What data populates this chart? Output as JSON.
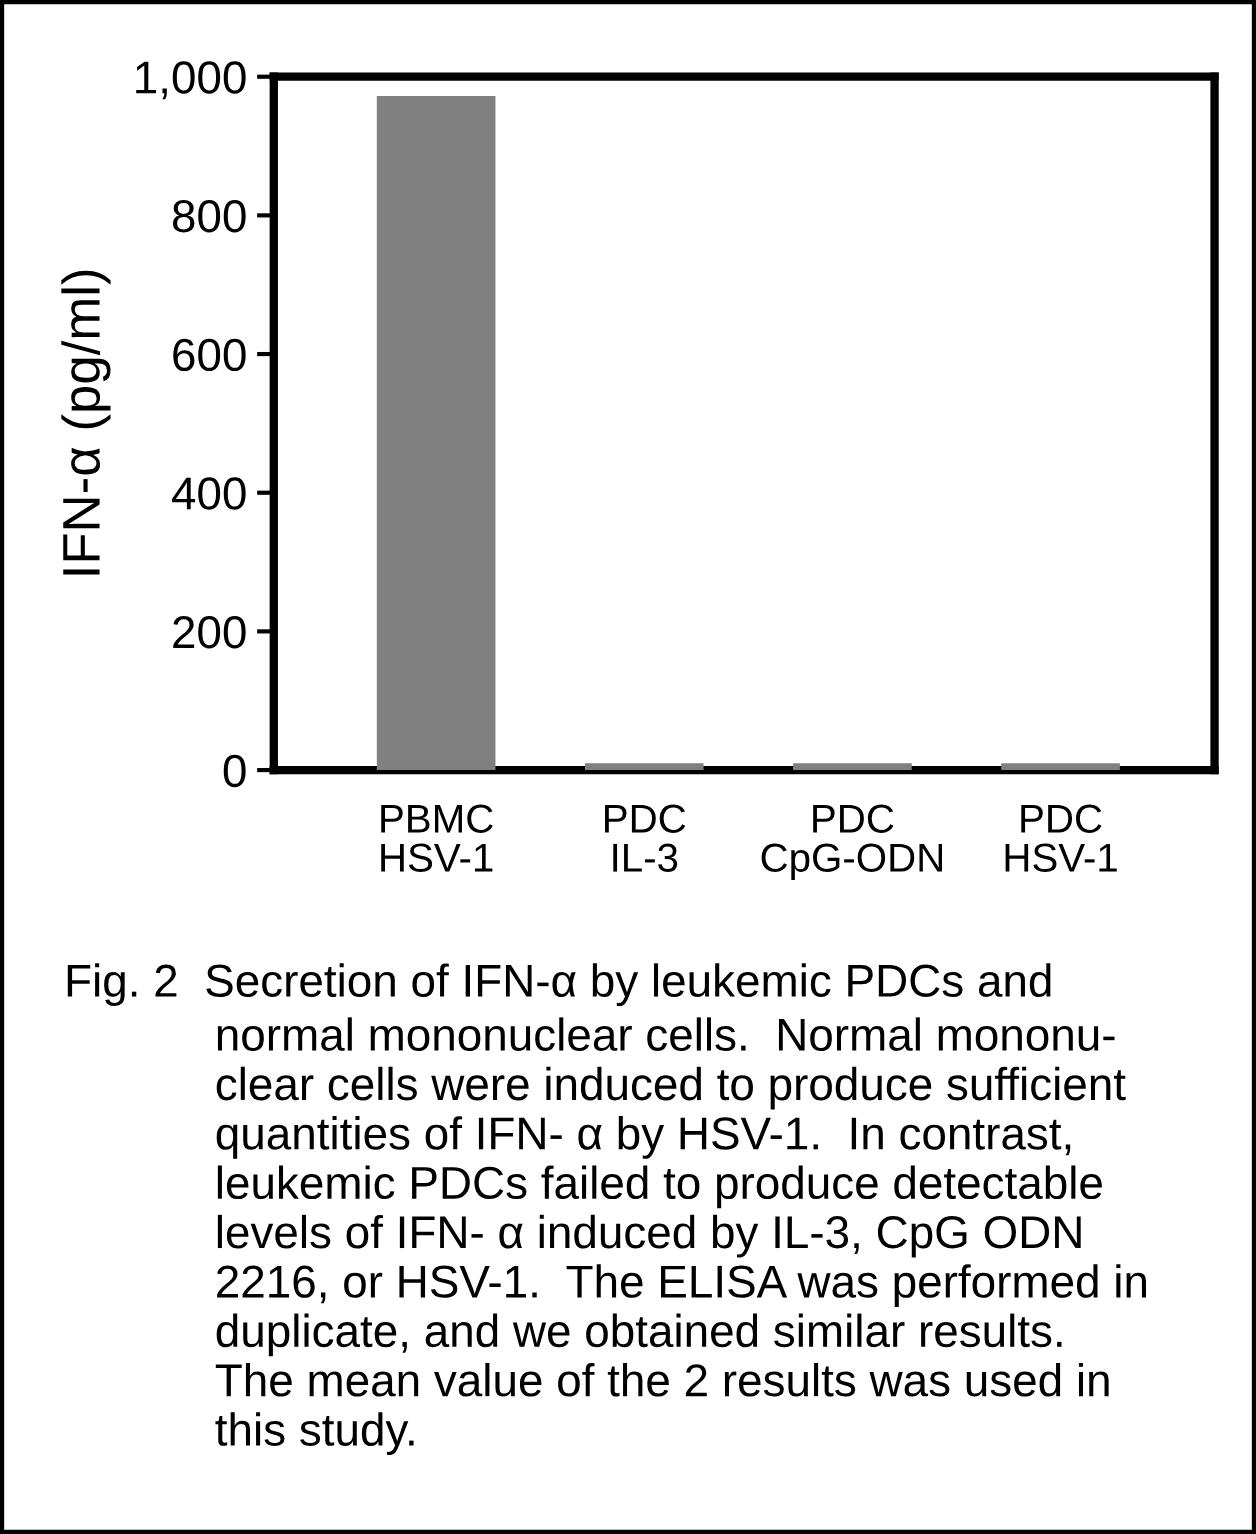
{
  "chart_data": {
    "type": "bar",
    "ylabel": "IFN-α (pg/ml)",
    "categories": [
      "PBMC\nHSV-1",
      "PDC\nIL-3",
      "PDC\nCpG-ODN",
      "PDC\nHSV-1"
    ],
    "values": [
      972,
      10,
      10,
      10
    ],
    "color": "#808080",
    "ylim": [
      0,
      1000
    ],
    "yticks": [
      0,
      200,
      400,
      600,
      800,
      {
        "value": 1000,
        "label": "1,000"
      }
    ],
    "grid": false,
    "annotations": [
      "Fig. 2  Secretion of IFN-α by leukemic PDCs and\nnormal mononuclear cells.  Normal mononu-\nclear cells were induced to produce sufficient\nquantities of IFN- α by HSV-1.  In contrast,\nleukemic PDCs failed to produce detectable\nlevels of IFN- α induced by IL-3, CpG ODN\n2216, or HSV-1.  The ELISA was performed in\nduplicate, and we obtained similar results.\nThe mean value of the 2 results was used in\nthis study."
    ]
  }
}
